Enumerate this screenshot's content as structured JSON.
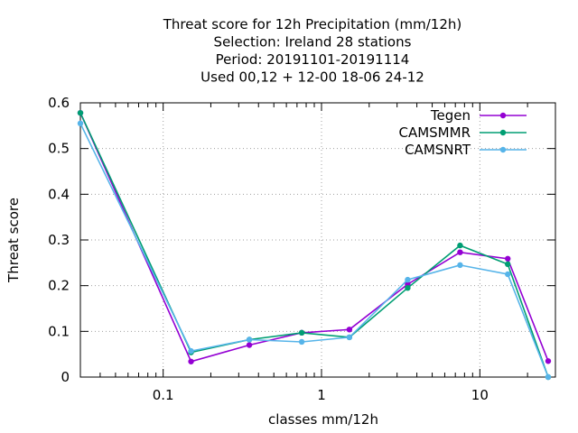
{
  "chart_data": {
    "type": "line",
    "title_lines": [
      "Threat score  for 12h Precipitation (mm/12h)",
      "Selection: Ireland      28 stations",
      "Period: 20191101-20191114",
      "Used  00,12  + 12-00 18-06 24-12"
    ],
    "xlabel": "classes mm/12h",
    "ylabel": "Threat score",
    "x_scale": "log",
    "xlim": [
      0.03,
      30
    ],
    "ylim": [
      0,
      0.6
    ],
    "x_ticks": [
      0.1,
      1,
      10
    ],
    "x_tick_labels": [
      "0.1",
      "1",
      "10"
    ],
    "y_ticks": [
      0,
      0.1,
      0.2,
      0.3,
      0.4,
      0.5,
      0.6
    ],
    "y_tick_labels": [
      "0",
      "0.1",
      "0.2",
      "0.3",
      "0.4",
      "0.5",
      "0.6"
    ],
    "grid": true,
    "legend_position": "top-right",
    "x": [
      0.03,
      0.15,
      0.35,
      0.75,
      1.5,
      3.5,
      7.5,
      15,
      27
    ],
    "series": [
      {
        "name": "Tegen",
        "color": "#9400d3",
        "marker": "filled-circle",
        "values": [
          0.578,
          0.034,
          0.07,
          0.097,
          0.104,
          0.203,
          0.273,
          0.259,
          0.035
        ]
      },
      {
        "name": "CAMSMMR",
        "color": "#009e73",
        "marker": "filled-circle",
        "values": [
          0.578,
          0.054,
          0.082,
          0.097,
          0.087,
          0.195,
          0.288,
          0.247,
          0.0
        ]
      },
      {
        "name": "CAMSNRT",
        "color": "#56b4e9",
        "marker": "filled-circle",
        "values": [
          0.555,
          0.057,
          0.082,
          0.077,
          0.087,
          0.213,
          0.245,
          0.225,
          0.0
        ]
      }
    ]
  }
}
